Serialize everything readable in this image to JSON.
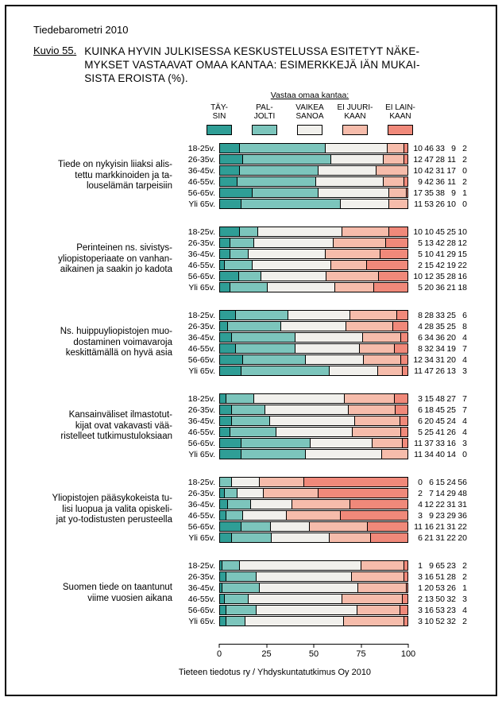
{
  "page": {
    "header": "Tiedebarometri 2010",
    "figure_label": "Kuvio 55.",
    "title_lines": [
      "KUINKA HYVIN JULKISESSA KESKUSTELUSSA ESITETYT NÄKE-",
      "MYKSET VASTAAVAT OMAA KANTAA: ESIMERKKEJÄ IÄN MUKAI-",
      "SISTA EROISTA  (%)."
    ],
    "footer": "Tieteen tiedotus ry / Yhdyskuntatutkimus Oy 2010"
  },
  "legend": {
    "title": "Vastaa omaa kantaa:",
    "items": [
      {
        "name": "taysin",
        "label_lines": [
          "TÄY-",
          "SIN"
        ],
        "color": "#2f9e96"
      },
      {
        "name": "paljolti",
        "label_lines": [
          "PAL-",
          "JOLTI"
        ],
        "color": "#7cc5bc"
      },
      {
        "name": "vaikea-sanoa",
        "label_lines": [
          "VAIKEA",
          "SANOA"
        ],
        "color": "#f1f0ec"
      },
      {
        "name": "ei-juurikaan",
        "label_lines": [
          "EI JUURI-",
          "KAAN"
        ],
        "color": "#f6bcab"
      },
      {
        "name": "ei-lainkaan",
        "label_lines": [
          "EI LAIN-",
          "KAAN"
        ],
        "color": "#f0897a"
      }
    ]
  },
  "chart_data": {
    "type": "bar",
    "stacked": true,
    "orientation": "horizontal",
    "unit": "%",
    "xlim": [
      0,
      100
    ],
    "x_ticks": [
      0,
      25,
      50,
      75,
      100
    ],
    "series": [
      "TÄYSIN",
      "PALJOLTI",
      "VAIKEA SANOA",
      "EI JUURIKAAN",
      "EI LAINKAAN"
    ],
    "colors": [
      "#2f9e96",
      "#7cc5bc",
      "#f1f0ec",
      "#f6bcab",
      "#f0897a"
    ],
    "age_groups": [
      "18-25v.",
      "26-35v.",
      "36-45v.",
      "46-55v.",
      "56-65v.",
      "Yli 65v."
    ],
    "groups": [
      {
        "statement_lines": [
          "Tiede on nykyisin liiaksi alis-",
          "tettu markkinoiden ja ta-",
          "louselämän tarpeisiin"
        ],
        "rows": [
          {
            "age": "18-25v.",
            "values": [
              10,
              46,
              33,
              9,
              2
            ]
          },
          {
            "age": "26-35v.",
            "values": [
              12,
              47,
              28,
              11,
              2
            ]
          },
          {
            "age": "36-45v.",
            "values": [
              10,
              42,
              31,
              17,
              0
            ]
          },
          {
            "age": "46-55v.",
            "values": [
              9,
              42,
              36,
              11,
              2
            ]
          },
          {
            "age": "56-65v.",
            "values": [
              17,
              35,
              38,
              9,
              1
            ]
          },
          {
            "age": "Yli 65v.",
            "values": [
              11,
              53,
              26,
              10,
              0
            ]
          }
        ]
      },
      {
        "statement_lines": [
          "Perinteinen ns. sivistys-",
          "yliopistoperiaate on vanhan-",
          "aikainen ja saakin jo kadota"
        ],
        "rows": [
          {
            "age": "18-25v.",
            "values": [
              10,
              10,
              45,
              25,
              10
            ]
          },
          {
            "age": "26-35v.",
            "values": [
              5,
              13,
              42,
              28,
              12
            ]
          },
          {
            "age": "36-45v.",
            "values": [
              5,
              10,
              41,
              29,
              15
            ]
          },
          {
            "age": "46-55v.",
            "values": [
              2,
              15,
              42,
              19,
              22
            ]
          },
          {
            "age": "56-65v.",
            "values": [
              10,
              12,
              35,
              28,
              16
            ]
          },
          {
            "age": "Yli 65v.",
            "values": [
              5,
              20,
              36,
              21,
              18
            ]
          }
        ]
      },
      {
        "statement_lines": [
          "Ns. huippuyliopistojen muo-",
          "dostaminen voimavaroja",
          "keskittämällä on hyvä asia"
        ],
        "rows": [
          {
            "age": "18-25v.",
            "values": [
              8,
              28,
              33,
              25,
              6
            ]
          },
          {
            "age": "26-35v.",
            "values": [
              4,
              28,
              35,
              25,
              8
            ]
          },
          {
            "age": "36-45v.",
            "values": [
              6,
              34,
              36,
              20,
              4
            ]
          },
          {
            "age": "46-55v.",
            "values": [
              8,
              32,
              34,
              19,
              7
            ]
          },
          {
            "age": "56-65v.",
            "values": [
              12,
              34,
              31,
              20,
              4
            ]
          },
          {
            "age": "Yli 65v.",
            "values": [
              11,
              47,
              26,
              13,
              3
            ]
          }
        ]
      },
      {
        "statement_lines": [
          "Kansainväliset ilmastotut-",
          "kijat ovat vakavasti vää-",
          "ristelleet tutkimustuloksiaan"
        ],
        "rows": [
          {
            "age": "18-25v.",
            "values": [
              3,
              15,
              48,
              27,
              7
            ]
          },
          {
            "age": "26-35v.",
            "values": [
              6,
              18,
              45,
              25,
              7
            ]
          },
          {
            "age": "36-45v.",
            "values": [
              6,
              20,
              45,
              24,
              4
            ]
          },
          {
            "age": "46-55v.",
            "values": [
              5,
              25,
              41,
              26,
              4
            ]
          },
          {
            "age": "56-65v.",
            "values": [
              11,
              37,
              33,
              16,
              3
            ]
          },
          {
            "age": "Yli 65v.",
            "values": [
              11,
              34,
              40,
              14,
              0
            ]
          }
        ]
      },
      {
        "statement_lines": [
          "Yliopistojen pääsykokeista tu-",
          "lisi luopua ja valita opiskeli-",
          "jat yo-todistusten perusteella"
        ],
        "rows": [
          {
            "age": "18-25v.",
            "values": [
              0,
              6,
              15,
              24,
              56
            ]
          },
          {
            "age": "26-35v.",
            "values": [
              2,
              7,
              14,
              29,
              48
            ]
          },
          {
            "age": "36-45v.",
            "values": [
              4,
              12,
              22,
              31,
              31
            ]
          },
          {
            "age": "46-55v.",
            "values": [
              3,
              9,
              23,
              29,
              36
            ]
          },
          {
            "age": "56-65v.",
            "values": [
              11,
              16,
              21,
              31,
              22
            ]
          },
          {
            "age": "Yli 65v.",
            "values": [
              6,
              21,
              31,
              22,
              20
            ]
          }
        ]
      },
      {
        "statement_lines": [
          "Suomen tiede on taantunut",
          "viime vuosien aikana"
        ],
        "rows": [
          {
            "age": "18-25v.",
            "values": [
              1,
              9,
              65,
              23,
              2
            ]
          },
          {
            "age": "26-35v.",
            "values": [
              3,
              16,
              51,
              28,
              2
            ]
          },
          {
            "age": "36-45v.",
            "values": [
              1,
              20,
              53,
              26,
              1
            ]
          },
          {
            "age": "46-55v.",
            "values": [
              2,
              13,
              50,
              32,
              3
            ]
          },
          {
            "age": "56-65v.",
            "values": [
              3,
              16,
              53,
              23,
              4
            ]
          },
          {
            "age": "Yli 65v.",
            "values": [
              3,
              10,
              52,
              32,
              2
            ]
          }
        ]
      }
    ]
  }
}
